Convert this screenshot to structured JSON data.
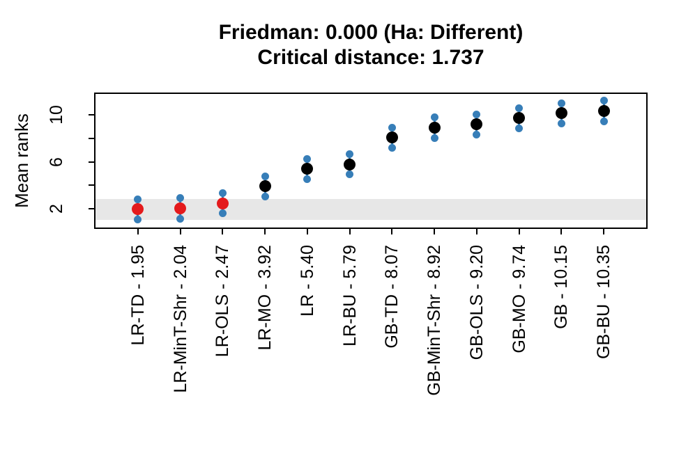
{
  "titles": {
    "line1": "Friedman: 0.000 (Ha: Different)",
    "line2": "Critical distance: 1.737"
  },
  "chart_data": {
    "type": "scatter",
    "title": "Friedman: 0.000 (Ha: Different)",
    "subtitle": "Critical distance: 1.737",
    "ylabel": "Mean ranks",
    "xlabel": "",
    "friedman_pvalue": "0.000",
    "alternative": "Ha: Different",
    "critical_distance": 1.737,
    "interval_half_width": 0.8685,
    "ylim": [
      0.4,
      11.8
    ],
    "grid": false,
    "legend": false,
    "y_ticks": [
      {
        "value": 2,
        "label": "2"
      },
      {
        "value": 4,
        "label": ""
      },
      {
        "value": 6,
        "label": "6"
      },
      {
        "value": 8,
        "label": ""
      },
      {
        "value": 10,
        "label": "10"
      }
    ],
    "band": {
      "from": 1.0815,
      "to": 2.8185
    },
    "methods": [
      {
        "name": "LR-TD",
        "mean_rank": 1.95,
        "label": "LR-TD - 1.95",
        "best_group": true
      },
      {
        "name": "LR-MinT-Shr",
        "mean_rank": 2.04,
        "label": "LR-MinT-Shr - 2.04",
        "best_group": true
      },
      {
        "name": "LR-OLS",
        "mean_rank": 2.47,
        "label": "LR-OLS - 2.47",
        "best_group": true
      },
      {
        "name": "LR-MO",
        "mean_rank": 3.92,
        "label": "LR-MO - 3.92",
        "best_group": false
      },
      {
        "name": "LR",
        "mean_rank": 5.4,
        "label": "LR - 5.40",
        "best_group": false
      },
      {
        "name": "LR-BU",
        "mean_rank": 5.79,
        "label": "LR-BU - 5.79",
        "best_group": false
      },
      {
        "name": "GB-TD",
        "mean_rank": 8.07,
        "label": "GB-TD - 8.07",
        "best_group": false
      },
      {
        "name": "GB-MinT-Shr",
        "mean_rank": 8.92,
        "label": "GB-MinT-Shr - 8.92",
        "best_group": false
      },
      {
        "name": "GB-OLS",
        "mean_rank": 9.2,
        "label": "GB-OLS - 9.20",
        "best_group": false
      },
      {
        "name": "GB-MO",
        "mean_rank": 9.74,
        "label": "GB-MO - 9.74",
        "best_group": false
      },
      {
        "name": "GB",
        "mean_rank": 10.15,
        "label": "GB - 10.15",
        "best_group": false
      },
      {
        "name": "GB-BU",
        "mean_rank": 10.35,
        "label": "GB-BU - 10.35",
        "best_group": false
      }
    ],
    "colors": {
      "best": "#e41a1c",
      "other": "#000000",
      "interval": "#377eb8",
      "band": "#e7e7e7",
      "axis": "#000000"
    }
  }
}
